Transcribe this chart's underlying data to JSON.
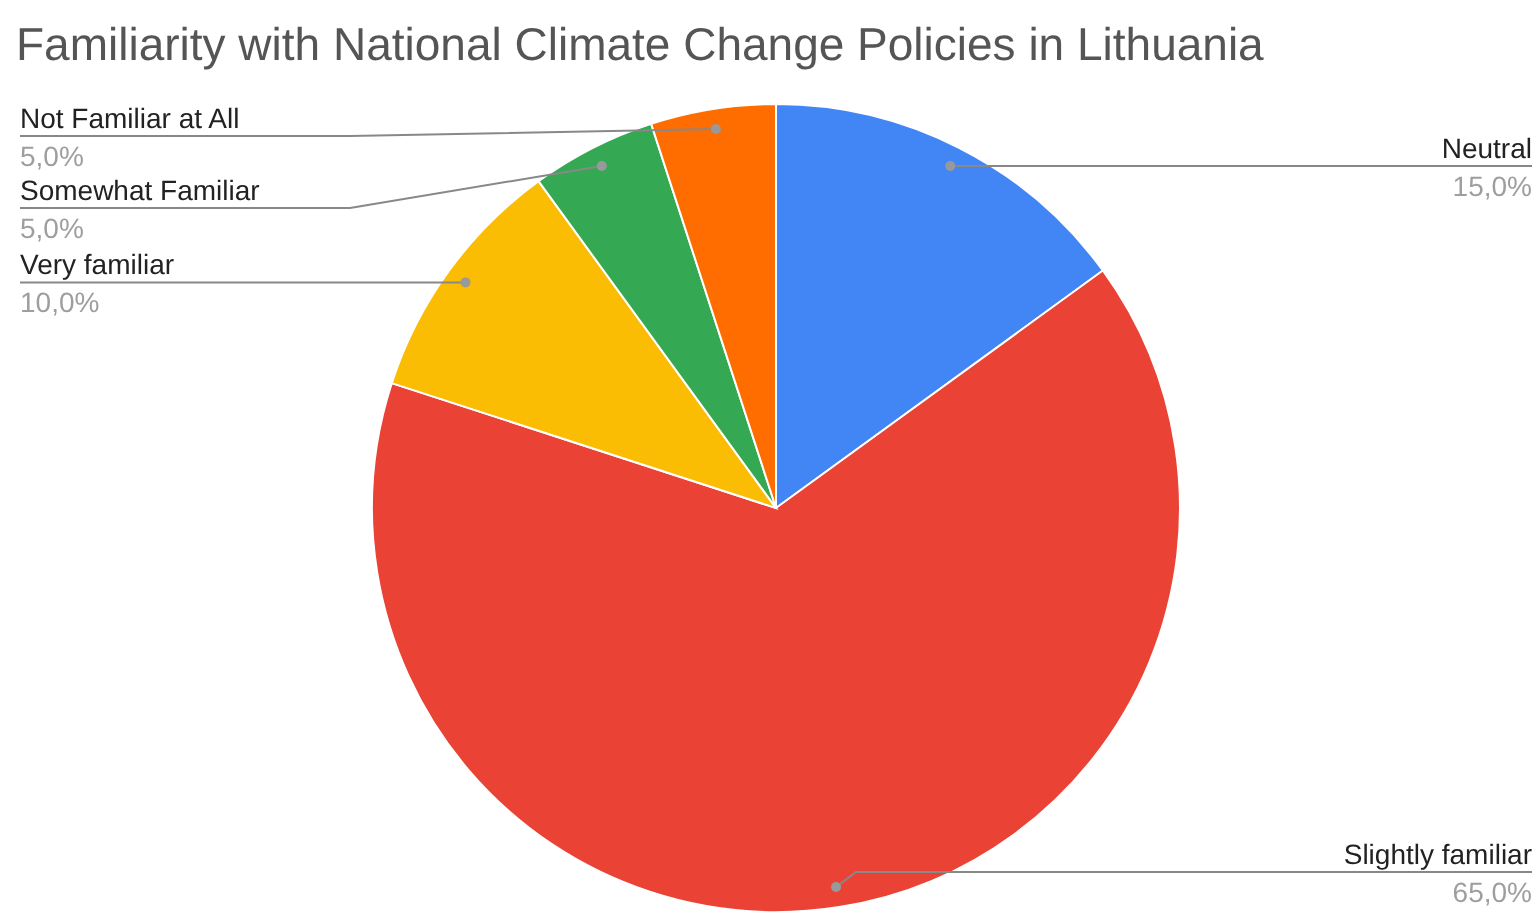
{
  "chart_data": {
    "type": "pie",
    "title": "Familiarity with National Climate Change Policies in Lithuania",
    "categories": [
      "Neutral",
      "Slightly familiar",
      "Very familiar",
      "Somewhat Familiar",
      "Not Familiar at All"
    ],
    "values": [
      15,
      65,
      10,
      5,
      5
    ],
    "value_labels": [
      "15,0%",
      "65,0%",
      "10,0%",
      "5,0%",
      "5,0%"
    ],
    "colors": [
      "#4285f4",
      "#ea4335",
      "#fbbc04",
      "#34a853",
      "#ff6d01"
    ]
  }
}
